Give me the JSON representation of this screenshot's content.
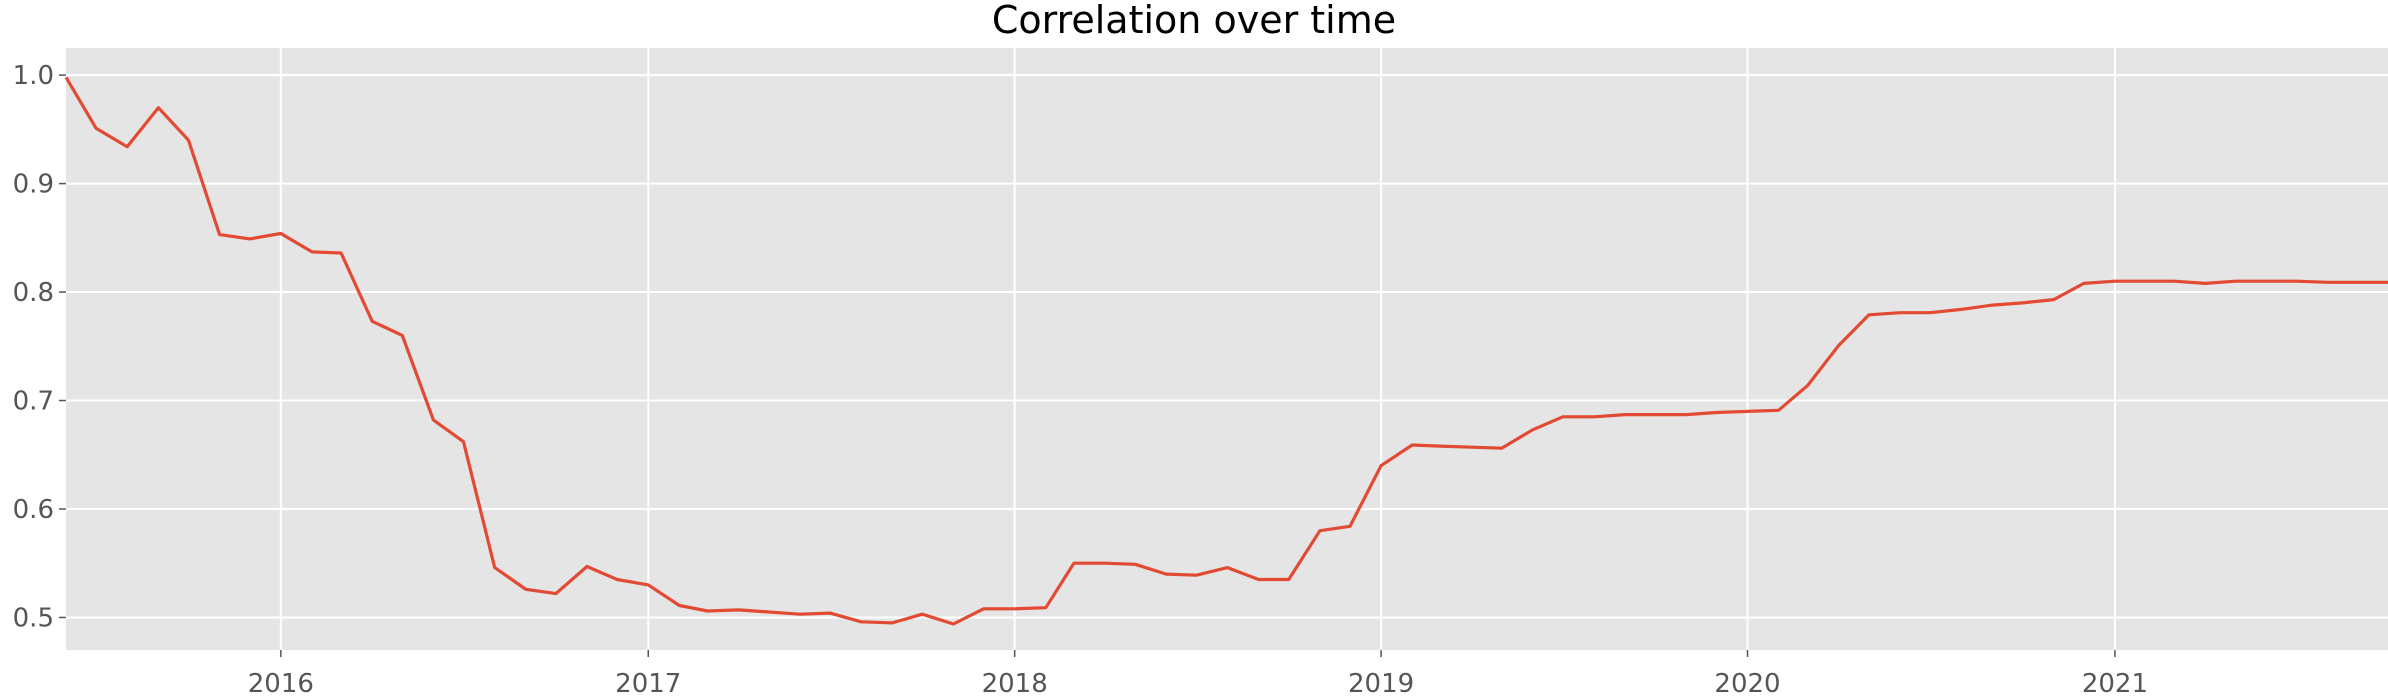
{
  "chart_data": {
    "type": "line",
    "title": "Correlation over time",
    "xlabel": "",
    "ylabel": "",
    "grid": true,
    "xlim": [
      "2015-06-01",
      "2021-09-30"
    ],
    "ylim": [
      0.47,
      1.025
    ],
    "x_ticks": [
      "2016",
      "2017",
      "2018",
      "2019",
      "2020",
      "2021"
    ],
    "y_ticks": [
      "0.5",
      "0.6",
      "0.7",
      "0.8",
      "0.9",
      "1.0"
    ],
    "series": [
      {
        "color": "#e24a33",
        "x": [
          "2015-06-01",
          "2015-07-01",
          "2015-08-01",
          "2015-09-01",
          "2015-10-01",
          "2015-11-01",
          "2015-12-01",
          "2016-01-01",
          "2016-02-01",
          "2016-03-01",
          "2016-04-01",
          "2016-05-01",
          "2016-06-01",
          "2016-07-01",
          "2016-08-01",
          "2016-09-01",
          "2016-10-01",
          "2016-11-01",
          "2016-12-01",
          "2017-01-01",
          "2017-02-01",
          "2017-03-01",
          "2017-04-01",
          "2017-05-01",
          "2017-06-01",
          "2017-07-01",
          "2017-08-01",
          "2017-09-01",
          "2017-10-01",
          "2017-11-01",
          "2017-12-01",
          "2018-01-01",
          "2018-02-01",
          "2018-03-01",
          "2018-04-01",
          "2018-05-01",
          "2018-06-01",
          "2018-07-01",
          "2018-08-01",
          "2018-09-01",
          "2018-10-01",
          "2018-11-01",
          "2018-12-01",
          "2019-01-01",
          "2019-02-01",
          "2019-03-01",
          "2019-04-01",
          "2019-05-01",
          "2019-06-01",
          "2019-07-01",
          "2019-08-01",
          "2019-09-01",
          "2019-10-01",
          "2019-11-01",
          "2019-12-01",
          "2020-01-01",
          "2020-02-01",
          "2020-03-01",
          "2020-04-01",
          "2020-05-01",
          "2020-06-01",
          "2020-07-01",
          "2020-08-01",
          "2020-09-01",
          "2020-10-01",
          "2020-11-01",
          "2020-12-01",
          "2021-01-01",
          "2021-02-01",
          "2021-03-01",
          "2021-04-01",
          "2021-05-01",
          "2021-06-01",
          "2021-07-01",
          "2021-08-01",
          "2021-09-01",
          "2021-09-30"
        ],
        "values": [
          0.998,
          0.951,
          0.934,
          0.97,
          0.94,
          0.853,
          0.849,
          0.854,
          0.837,
          0.836,
          0.773,
          0.76,
          0.682,
          0.662,
          0.546,
          0.526,
          0.522,
          0.547,
          0.535,
          0.53,
          0.511,
          0.506,
          0.507,
          0.505,
          0.503,
          0.504,
          0.496,
          0.495,
          0.503,
          0.494,
          0.508,
          0.508,
          0.509,
          0.55,
          0.55,
          0.549,
          0.54,
          0.539,
          0.546,
          0.535,
          0.535,
          0.58,
          0.584,
          0.64,
          0.659,
          0.658,
          0.657,
          0.656,
          0.673,
          0.685,
          0.685,
          0.687,
          0.687,
          0.687,
          0.689,
          0.69,
          0.691,
          0.714,
          0.751,
          0.779,
          0.781,
          0.781,
          0.784,
          0.788,
          0.79,
          0.793,
          0.808,
          0.81,
          0.81,
          0.81,
          0.808,
          0.81,
          0.81,
          0.81,
          0.809,
          0.809,
          0.809
        ]
      }
    ]
  }
}
